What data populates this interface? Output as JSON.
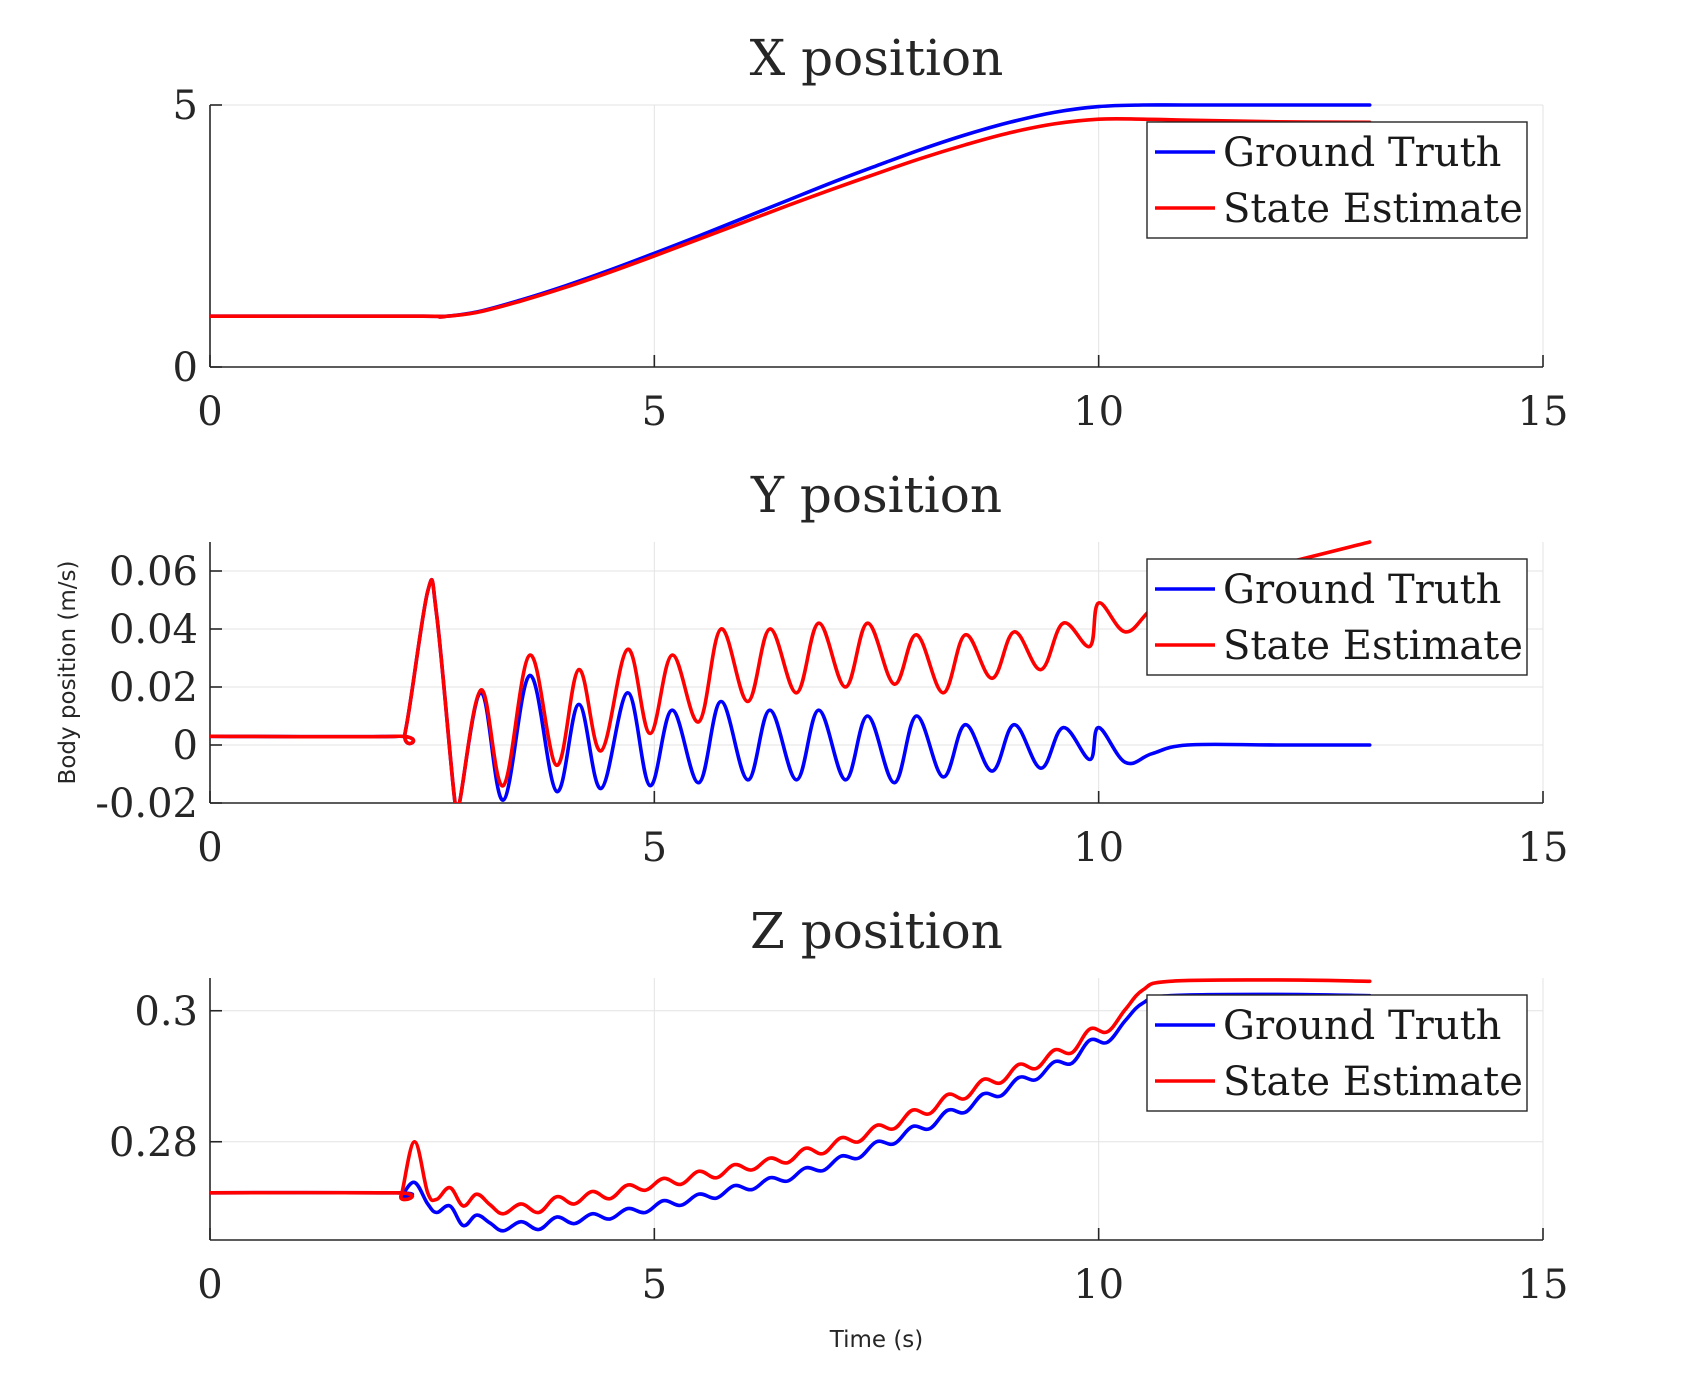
{
  "chart_data": [
    {
      "type": "line",
      "title": "X position",
      "xlim": [
        0,
        15
      ],
      "ylim": [
        0,
        5
      ],
      "xticks": [
        0,
        5,
        10,
        15
      ],
      "xtick_labels": [
        "0",
        "5",
        "10",
        "15"
      ],
      "yticks": [
        0,
        5
      ],
      "ytick_labels": [
        "0",
        "5"
      ],
      "grid": true,
      "legend": "top-right",
      "series": [
        {
          "name": "Ground Truth",
          "color": "#0000ff",
          "x": [
            0,
            2.4,
            2.6,
            3,
            3.5,
            4,
            4.5,
            5,
            5.5,
            6,
            6.5,
            7,
            7.5,
            8,
            8.5,
            9,
            9.5,
            10,
            10.5,
            11,
            12,
            13.05
          ],
          "y": [
            0.97,
            0.97,
            0.96,
            1.05,
            1.28,
            1.55,
            1.85,
            2.17,
            2.5,
            2.84,
            3.18,
            3.52,
            3.84,
            4.15,
            4.43,
            4.67,
            4.86,
            4.97,
            5.0,
            5.0,
            5.0,
            5.0
          ]
        },
        {
          "name": "State Estimate",
          "color": "#ff0000",
          "x": [
            0,
            2.4,
            2.6,
            3,
            3.5,
            4,
            4.5,
            5,
            5.5,
            6,
            6.5,
            7,
            7.5,
            8,
            8.5,
            9,
            9.5,
            10,
            10.5,
            11,
            12,
            13.05
          ],
          "y": [
            0.97,
            0.97,
            0.96,
            1.04,
            1.26,
            1.52,
            1.81,
            2.12,
            2.44,
            2.76,
            3.08,
            3.39,
            3.69,
            3.98,
            4.24,
            4.47,
            4.64,
            4.73,
            4.73,
            4.71,
            4.68,
            4.67
          ]
        }
      ]
    },
    {
      "type": "line",
      "title": "Y position",
      "ylabel": "Body position (m/s)",
      "xlim": [
        0,
        15
      ],
      "ylim": [
        -0.02,
        0.07
      ],
      "xticks": [
        0,
        5,
        10,
        15
      ],
      "xtick_labels": [
        "0",
        "5",
        "10",
        "15"
      ],
      "yticks": [
        -0.02,
        0,
        0.02,
        0.04,
        0.06
      ],
      "ytick_labels": [
        "-0.02",
        "0",
        "0.02",
        "0.04",
        "0.06"
      ],
      "grid": true,
      "legend": "top-right",
      "series": [
        {
          "name": "Ground Truth",
          "color": "#0000ff",
          "x": [
            0,
            2.1,
            2.2,
            2.45,
            2.55,
            2.75,
            2.8,
            3.05,
            3.3,
            3.6,
            3.9,
            4.15,
            4.4,
            4.7,
            4.95,
            5.2,
            5.5,
            5.75,
            6.05,
            6.3,
            6.6,
            6.85,
            7.15,
            7.4,
            7.7,
            7.95,
            8.25,
            8.5,
            8.8,
            9.05,
            9.35,
            9.6,
            9.9,
            10.0,
            10.3,
            10.6,
            11.0,
            12.0,
            13.05
          ],
          "y": [
            0.003,
            0.003,
            0.005,
            0.053,
            0.045,
            -0.018,
            -0.021,
            0.018,
            -0.019,
            0.024,
            -0.016,
            0.014,
            -0.015,
            0.018,
            -0.014,
            0.012,
            -0.013,
            0.015,
            -0.012,
            0.012,
            -0.012,
            0.012,
            -0.012,
            0.01,
            -0.013,
            0.01,
            -0.011,
            0.007,
            -0.009,
            0.007,
            -0.008,
            0.006,
            -0.005,
            0.006,
            -0.006,
            -0.003,
            0.0,
            0.0,
            0.0
          ]
        },
        {
          "name": "State Estimate",
          "color": "#ff0000",
          "x": [
            0,
            2.1,
            2.2,
            2.45,
            2.55,
            2.75,
            2.8,
            3.05,
            3.3,
            3.6,
            3.9,
            4.15,
            4.4,
            4.7,
            4.95,
            5.2,
            5.5,
            5.75,
            6.05,
            6.3,
            6.6,
            6.85,
            7.15,
            7.4,
            7.7,
            7.95,
            8.25,
            8.5,
            8.8,
            9.05,
            9.35,
            9.6,
            9.9,
            10.0,
            10.3,
            10.6,
            11.0,
            12.0,
            13.05
          ],
          "y": [
            0.003,
            0.003,
            0.005,
            0.053,
            0.045,
            -0.018,
            -0.021,
            0.019,
            -0.014,
            0.031,
            -0.007,
            0.026,
            -0.002,
            0.033,
            0.004,
            0.031,
            0.008,
            0.04,
            0.015,
            0.04,
            0.018,
            0.042,
            0.02,
            0.042,
            0.021,
            0.038,
            0.018,
            0.038,
            0.023,
            0.039,
            0.026,
            0.042,
            0.034,
            0.049,
            0.039,
            0.047,
            0.055,
            0.062,
            0.07
          ]
        }
      ]
    },
    {
      "type": "line",
      "title": "Z position",
      "xlabel": "Time (s)",
      "xlim": [
        0,
        15
      ],
      "ylim": [
        0.265,
        0.305
      ],
      "xticks": [
        0,
        5,
        10,
        15
      ],
      "xtick_labels": [
        "0",
        "5",
        "10",
        "15"
      ],
      "yticks": [
        0.28,
        0.3
      ],
      "ytick_labels": [
        "0.28",
        "0.3"
      ],
      "grid": true,
      "legend": "top-right",
      "series": [
        {
          "name": "Ground Truth",
          "color": "#0000ff",
          "x": [
            0,
            2.1,
            2.15,
            2.3,
            2.45,
            2.55,
            2.7,
            2.85,
            3.0,
            3.15,
            3.3,
            3.5,
            3.7,
            3.9,
            4.1,
            4.3,
            4.5,
            4.7,
            4.9,
            5.1,
            5.3,
            5.5,
            5.7,
            5.9,
            6.1,
            6.3,
            6.5,
            6.7,
            6.9,
            7.1,
            7.3,
            7.5,
            7.7,
            7.9,
            8.1,
            8.3,
            8.5,
            8.7,
            8.9,
            9.1,
            9.3,
            9.5,
            9.7,
            9.9,
            10.1,
            10.3,
            10.5,
            10.8,
            12.0,
            13.05
          ],
          "y": [
            0.2722,
            0.2722,
            0.2717,
            0.2738,
            0.2705,
            0.2692,
            0.2702,
            0.2672,
            0.2688,
            0.2676,
            0.2664,
            0.2678,
            0.2666,
            0.2685,
            0.2675,
            0.269,
            0.2682,
            0.2698,
            0.2692,
            0.271,
            0.2703,
            0.272,
            0.2714,
            0.2733,
            0.2727,
            0.2745,
            0.274,
            0.276,
            0.2756,
            0.2778,
            0.2775,
            0.28,
            0.2797,
            0.2823,
            0.282,
            0.2848,
            0.2845,
            0.2873,
            0.287,
            0.2898,
            0.2895,
            0.2922,
            0.292,
            0.2955,
            0.2952,
            0.2985,
            0.3012,
            0.3023,
            0.3025,
            0.3023
          ]
        },
        {
          "name": "State Estimate",
          "color": "#ff0000",
          "x": [
            0,
            2.1,
            2.15,
            2.3,
            2.45,
            2.55,
            2.7,
            2.85,
            3.0,
            3.15,
            3.3,
            3.5,
            3.7,
            3.9,
            4.1,
            4.3,
            4.5,
            4.7,
            4.9,
            5.1,
            5.3,
            5.5,
            5.7,
            5.9,
            6.1,
            6.3,
            6.5,
            6.7,
            6.9,
            7.1,
            7.3,
            7.5,
            7.7,
            7.9,
            8.1,
            8.3,
            8.5,
            8.7,
            8.9,
            9.1,
            9.3,
            9.5,
            9.7,
            9.9,
            10.1,
            10.3,
            10.5,
            10.8,
            12.0,
            13.05
          ],
          "y": [
            0.2722,
            0.2722,
            0.2717,
            0.28,
            0.2722,
            0.2712,
            0.273,
            0.2702,
            0.272,
            0.2704,
            0.269,
            0.2705,
            0.2692,
            0.2716,
            0.2705,
            0.2724,
            0.2713,
            0.2734,
            0.2726,
            0.2744,
            0.2735,
            0.2755,
            0.2745,
            0.2765,
            0.2757,
            0.2775,
            0.2768,
            0.279,
            0.2782,
            0.2806,
            0.28,
            0.2825,
            0.282,
            0.2848,
            0.2843,
            0.2872,
            0.2866,
            0.2895,
            0.289,
            0.2918,
            0.2912,
            0.294,
            0.2936,
            0.2972,
            0.2968,
            0.3002,
            0.3032,
            0.3045,
            0.3047,
            0.3045
          ]
        }
      ]
    }
  ]
}
